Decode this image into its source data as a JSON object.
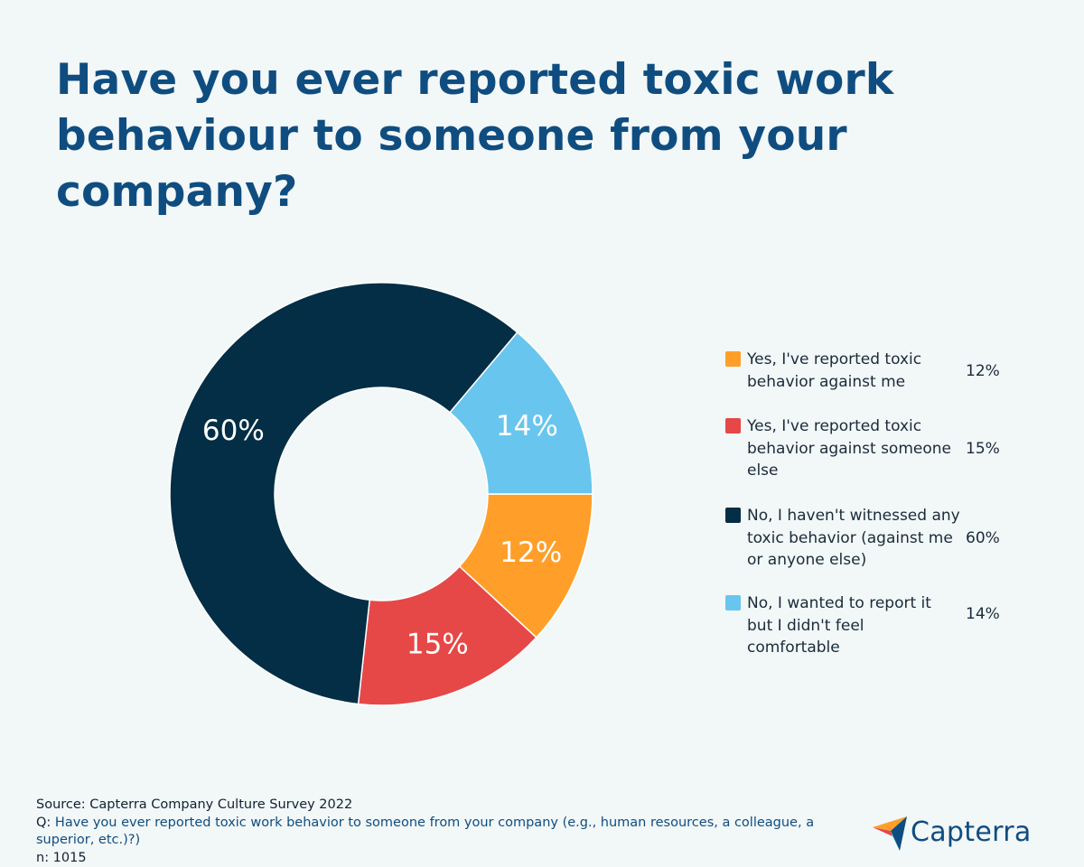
{
  "title": "Have you ever reported toxic work behaviour to someone from your company?",
  "chart_data": {
    "type": "pie",
    "variant": "donut",
    "title": "Have you ever reported toxic work behaviour to someone from your company?",
    "legend_position": "right",
    "slices": [
      {
        "label": "Yes, I've reported toxic behavior against me",
        "value": 12,
        "display": "12%",
        "color": "#ff9f2a"
      },
      {
        "label": "Yes, I've reported toxic behavior against someone else",
        "value": 15,
        "display": "15%",
        "color": "#e54847"
      },
      {
        "label": "No, I haven't witnessed any toxic behavior (against me or anyone else)",
        "value": 60,
        "display": "60%",
        "color": "#032e45"
      },
      {
        "label": "No, I wanted to report it but I didn't feel comfortable",
        "value": 14,
        "display": "14%",
        "color": "#68c5ee"
      }
    ]
  },
  "footer": {
    "source": "Source: Capterra Company Culture Survey 2022",
    "q_prefix": "Q: ",
    "q_text": "Have you ever reported toxic work behavior to someone from your company (e.g., human resources, a colleague, a superior, etc.)?)",
    "n": "n: 1015"
  },
  "logo": {
    "text": "Capterra",
    "colors": {
      "blue": "#0f4d80",
      "orange": "#ff9f2a",
      "red": "#e54847",
      "light_blue": "#68c5ee"
    }
  }
}
